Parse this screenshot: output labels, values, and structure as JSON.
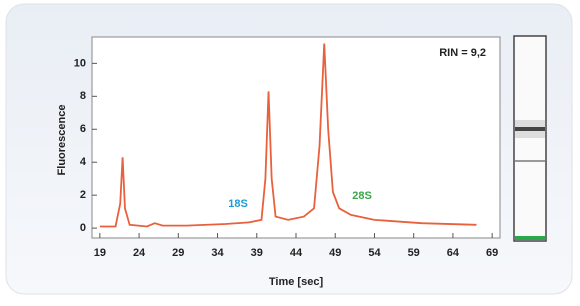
{
  "chart_data": {
    "type": "line",
    "x": [
      19,
      21,
      21.6,
      21.9,
      22.2,
      22.8,
      25,
      26,
      27,
      30,
      35,
      38,
      39.6,
      40.1,
      40.5,
      40.9,
      41.4,
      43,
      45,
      46.3,
      47,
      47.6,
      48.1,
      48.7,
      49.5,
      51,
      54,
      60,
      67
    ],
    "values": [
      0.1,
      0.1,
      1.5,
      4.3,
      1.2,
      0.2,
      0.1,
      0.3,
      0.15,
      0.15,
      0.25,
      0.35,
      0.5,
      3,
      8.3,
      3,
      0.7,
      0.5,
      0.7,
      1.2,
      5,
      11.2,
      6,
      2.2,
      1.2,
      0.8,
      0.5,
      0.3,
      0.2
    ],
    "color": "#e8603c",
    "xlabel": "Time [sec]",
    "ylabel": "Fluorescence",
    "xlim": [
      18,
      70
    ],
    "xticks": [
      19,
      24,
      29,
      34,
      39,
      44,
      49,
      54,
      59,
      64,
      69
    ],
    "ylim": [
      -0.6,
      11.6
    ],
    "yticks": [
      0,
      2,
      4,
      6,
      8,
      10
    ],
    "annotations": [
      {
        "text": "RIN = 9,2",
        "color": "#222222"
      },
      {
        "text": "18S",
        "color": "#1e9ad6"
      },
      {
        "text": "28S",
        "color": "#3aa64a"
      }
    ]
  }
}
